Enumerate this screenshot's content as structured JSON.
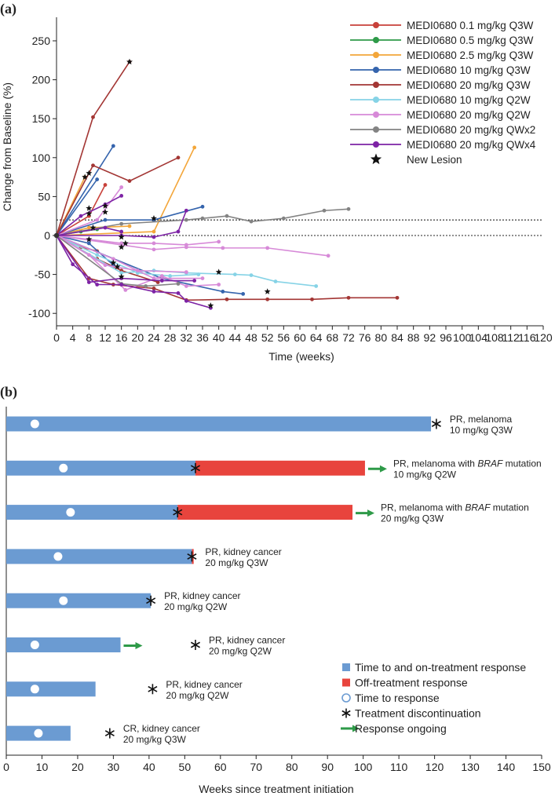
{
  "panel_a": {
    "label": "(a)",
    "chart_data": {
      "type": "line",
      "title": "",
      "xlabel": "Time (weeks)",
      "ylabel": "Change from Baseline (%)",
      "xlim": [
        0,
        120
      ],
      "ylim": [
        -100,
        270
      ],
      "xticks": [
        0,
        4,
        8,
        12,
        16,
        20,
        24,
        28,
        32,
        36,
        40,
        44,
        48,
        52,
        56,
        60,
        64,
        68,
        72,
        76,
        80,
        84,
        88,
        92,
        96,
        100,
        104,
        108,
        112,
        116,
        120
      ],
      "yticks": [
        -100,
        -50,
        0,
        50,
        100,
        150,
        200,
        250
      ],
      "reference_lines": [
        20,
        0
      ],
      "legend_position": "top-right",
      "legend": [
        {
          "label": "MEDI0680 0.1 mg/kg Q3W",
          "color": "#c8413a",
          "marker": "circle"
        },
        {
          "label": "MEDI0680 0.5 mg/kg Q3W",
          "color": "#2e9a48",
          "marker": "circle"
        },
        {
          "label": "MEDI0680 2.5 mg/kg Q3W",
          "color": "#f3a63a",
          "marker": "circle"
        },
        {
          "label": "MEDI0680 10 mg/kg Q3W",
          "color": "#3564ad",
          "marker": "circle"
        },
        {
          "label": "MEDI0680 20 mg/kg Q3W",
          "color": "#a33634",
          "marker": "circle"
        },
        {
          "label": "MEDI0680 10 mg/kg Q2W",
          "color": "#86d3e6",
          "marker": "circle"
        },
        {
          "label": "MEDI0680 20 mg/kg Q2W",
          "color": "#d78ad8",
          "marker": "circle"
        },
        {
          "label": "MEDI0680 20 mg/kg QWx2",
          "color": "#838383",
          "marker": "circle"
        },
        {
          "label": "MEDI0680 20 mg/kg QWx4",
          "color": "#7d23a5",
          "marker": "circle"
        },
        {
          "label": "New Lesion",
          "color": "#111111",
          "marker": "star"
        }
      ],
      "series": [
        {
          "group": 0,
          "points": [
            [
              0,
              0
            ],
            [
              8,
              25
            ],
            [
              12,
              65
            ]
          ]
        },
        {
          "group": 0,
          "points": [
            [
              0,
              0
            ],
            [
              6,
              -15
            ],
            [
              10,
              -20
            ]
          ]
        },
        {
          "group": 1,
          "points": [
            [
              0,
              0
            ],
            [
              6,
              5
            ],
            [
              10,
              8
            ]
          ]
        },
        {
          "group": 2,
          "points": [
            [
              0,
              0
            ],
            [
              7,
              75
            ]
          ]
        },
        {
          "group": 2,
          "points": [
            [
              0,
              0
            ],
            [
              24,
              5
            ],
            [
              34,
              113
            ]
          ]
        },
        {
          "group": 2,
          "points": [
            [
              0,
              0
            ],
            [
              8,
              10
            ],
            [
              18,
              12
            ]
          ]
        },
        {
          "group": 3,
          "points": [
            [
              0,
              0
            ],
            [
              14,
              115
            ]
          ]
        },
        {
          "group": 3,
          "points": [
            [
              0,
              0
            ],
            [
              10,
              72
            ]
          ]
        },
        {
          "group": 3,
          "points": [
            [
              0,
              0
            ],
            [
              12,
              20
            ],
            [
              24,
              20
            ],
            [
              36,
              37
            ]
          ]
        },
        {
          "group": 3,
          "points": [
            [
              0,
              0
            ],
            [
              26,
              -55
            ],
            [
              41,
              -72
            ],
            [
              46,
              -75
            ]
          ]
        },
        {
          "group": 3,
          "points": [
            [
              0,
              0
            ],
            [
              8,
              -10
            ],
            [
              14,
              -38
            ]
          ]
        },
        {
          "group": 4,
          "points": [
            [
              0,
              0
            ],
            [
              9,
              152
            ],
            [
              18,
              223
            ]
          ]
        },
        {
          "group": 4,
          "points": [
            [
              0,
              0
            ],
            [
              9,
              90
            ],
            [
              18,
              70
            ],
            [
              30,
              100
            ]
          ]
        },
        {
          "group": 4,
          "points": [
            [
              0,
              0
            ],
            [
              8,
              -55
            ],
            [
              14,
              -63
            ],
            [
              24,
              -68
            ],
            [
              32,
              -83
            ],
            [
              42,
              -82
            ],
            [
              52,
              -82
            ],
            [
              63,
              -82
            ],
            [
              72,
              -80
            ],
            [
              84,
              -80
            ]
          ]
        },
        {
          "group": 4,
          "points": [
            [
              0,
              0
            ],
            [
              10,
              -30
            ],
            [
              16,
              -45
            ],
            [
              25,
              -60
            ]
          ]
        },
        {
          "group": 5,
          "points": [
            [
              0,
              0
            ],
            [
              16,
              -48
            ],
            [
              24,
              -45
            ],
            [
              32,
              -48
            ],
            [
              44,
              -50
            ],
            [
              48,
              -51
            ],
            [
              54,
              -59
            ],
            [
              64,
              -65
            ]
          ]
        },
        {
          "group": 5,
          "points": [
            [
              0,
              0
            ],
            [
              10,
              -25
            ],
            [
              20,
              -48
            ],
            [
              28,
              -52
            ],
            [
              35,
              -50
            ]
          ]
        },
        {
          "group": 6,
          "points": [
            [
              0,
              0
            ],
            [
              16,
              -12
            ],
            [
              24,
              -18
            ],
            [
              32,
              -15
            ],
            [
              41,
              -16
            ],
            [
              52,
              -16
            ],
            [
              67,
              -26
            ]
          ]
        },
        {
          "group": 6,
          "points": [
            [
              0,
              0
            ],
            [
              8,
              -5
            ],
            [
              16,
              -10
            ],
            [
              24,
              -10
            ],
            [
              32,
              -12
            ],
            [
              40,
              -8
            ]
          ]
        },
        {
          "group": 6,
          "points": [
            [
              0,
              0
            ],
            [
              8,
              -25
            ],
            [
              17,
              -70
            ],
            [
              26,
              -52
            ],
            [
              32,
              -65
            ],
            [
              40,
              -63
            ]
          ]
        },
        {
          "group": 6,
          "points": [
            [
              0,
              0
            ],
            [
              10,
              20
            ],
            [
              16,
              62
            ]
          ]
        },
        {
          "group": 6,
          "points": [
            [
              0,
              0
            ],
            [
              12,
              -38
            ],
            [
              20,
              -45
            ],
            [
              32,
              -47
            ]
          ]
        },
        {
          "group": 6,
          "points": [
            [
              0,
              0
            ],
            [
              14,
              -30
            ],
            [
              24,
              -55
            ],
            [
              36,
              -55
            ]
          ]
        },
        {
          "group": 7,
          "points": [
            [
              0,
              0
            ],
            [
              16,
              15
            ],
            [
              32,
              20
            ],
            [
              36,
              22
            ],
            [
              42,
              25
            ],
            [
              48,
              18
            ],
            [
              56,
              22
            ],
            [
              66,
              32
            ],
            [
              72,
              34
            ]
          ]
        },
        {
          "group": 7,
          "points": [
            [
              0,
              0
            ],
            [
              16,
              -62
            ],
            [
              22,
              -65
            ],
            [
              30,
              -62
            ]
          ]
        },
        {
          "group": 8,
          "points": [
            [
              0,
              0
            ],
            [
              6,
              25
            ],
            [
              12,
              40
            ],
            [
              16,
              51
            ]
          ]
        },
        {
          "group": 8,
          "points": [
            [
              0,
              0
            ],
            [
              8,
              -60
            ],
            [
              16,
              -55
            ],
            [
              26,
              -58
            ],
            [
              34,
              -58
            ]
          ]
        },
        {
          "group": 8,
          "points": [
            [
              0,
              0
            ],
            [
              16,
              0
            ],
            [
              24,
              -2
            ],
            [
              30,
              5
            ],
            [
              32,
              32
            ]
          ]
        },
        {
          "group": 8,
          "points": [
            [
              0,
              0
            ],
            [
              12,
              10
            ],
            [
              16,
              5
            ]
          ]
        },
        {
          "group": 8,
          "points": [
            [
              0,
              0
            ],
            [
              4,
              -37
            ],
            [
              10,
              -63
            ],
            [
              16,
              -63
            ],
            [
              24,
              -72
            ],
            [
              30,
              -74
            ],
            [
              32,
              -84
            ],
            [
              38,
              -93
            ]
          ]
        }
      ],
      "new_lesions": [
        [
          18,
          223
        ],
        [
          7,
          75
        ],
        [
          8,
          80
        ],
        [
          8,
          35
        ],
        [
          12,
          38
        ],
        [
          12,
          30
        ],
        [
          8,
          28
        ],
        [
          9,
          10
        ],
        [
          16,
          -15
        ],
        [
          17,
          -10
        ],
        [
          15,
          -40
        ],
        [
          14,
          -35
        ],
        [
          16,
          -53
        ],
        [
          8,
          -5
        ],
        [
          24,
          22
        ],
        [
          40,
          -47
        ],
        [
          52,
          -72
        ],
        [
          38,
          -90
        ],
        [
          16,
          -2
        ]
      ]
    }
  },
  "panel_b": {
    "label": "(b)",
    "chart_data": {
      "type": "bar",
      "orientation": "horizontal",
      "xlabel": "Weeks since treatment initiation",
      "xlim": [
        0,
        150
      ],
      "xticks": [
        0,
        10,
        20,
        30,
        40,
        50,
        60,
        70,
        80,
        90,
        100,
        110,
        120,
        130,
        140,
        150
      ],
      "legend_position": "bottom-right",
      "legend": [
        {
          "label": "Time to and on-treatment response",
          "color": "#6b9bd2",
          "marker": "square"
        },
        {
          "label": "Off-treatment response",
          "color": "#e8443d",
          "marker": "square"
        },
        {
          "label": "Time to response",
          "color": "#ffffff",
          "marker": "circle"
        },
        {
          "label": "Treatment discontinuation",
          "color": "#111111",
          "marker": "asterisk"
        },
        {
          "label": "Response ongoing",
          "color": "#2e9a48",
          "marker": "arrow"
        }
      ],
      "patients": [
        {
          "on_end": 119,
          "off_end": null,
          "response": 8,
          "discontinuation": 120.5,
          "ongoing": false,
          "text1": "PR, melanoma",
          "text1_italic": "",
          "text1_tail": "",
          "text2": "10 mg/kg Q3W"
        },
        {
          "on_end": 53,
          "off_end": 100.5,
          "response": 16,
          "discontinuation": 53,
          "ongoing": true,
          "text1": "PR, melanoma with ",
          "text1_italic": "BRAF",
          "text1_tail": " mutation",
          "text2": "10 mg/kg Q2W"
        },
        {
          "on_end": 48,
          "off_end": 97,
          "response": 18,
          "discontinuation": 48,
          "ongoing": true,
          "text1": "PR, melanoma with ",
          "text1_italic": "BRAF",
          "text1_tail": " mutation",
          "text2": "20 mg/kg Q3W"
        },
        {
          "on_end": 52,
          "off_end": 52.5,
          "response": 14.5,
          "discontinuation": 52,
          "ongoing": false,
          "text1": "PR, kidney cancer",
          "text1_italic": "",
          "text1_tail": "",
          "text2": "20 mg/kg Q3W"
        },
        {
          "on_end": 40.5,
          "off_end": null,
          "response": 16,
          "discontinuation": 40.5,
          "ongoing": false,
          "text1": "PR, kidney cancer",
          "text1_italic": "",
          "text1_tail": "",
          "text2": "20 mg/kg Q2W"
        },
        {
          "on_end": 32,
          "off_end": null,
          "response": 8,
          "discontinuation": 53,
          "ongoing": true,
          "text1": "PR, kidney cancer",
          "text1_italic": "",
          "text1_tail": "",
          "text2": "20 mg/kg Q2W"
        },
        {
          "on_end": 25,
          "off_end": null,
          "response": 8,
          "discontinuation": 41,
          "ongoing": false,
          "text1": "PR, kidney cancer",
          "text1_italic": "",
          "text1_tail": "",
          "text2": "20 mg/kg Q2W"
        },
        {
          "on_end": 18,
          "off_end": null,
          "response": 9,
          "discontinuation": 29,
          "ongoing": false,
          "text1": "CR, kidney cancer",
          "text1_italic": "",
          "text1_tail": "",
          "text2": "20 mg/kg Q3W"
        }
      ]
    }
  }
}
